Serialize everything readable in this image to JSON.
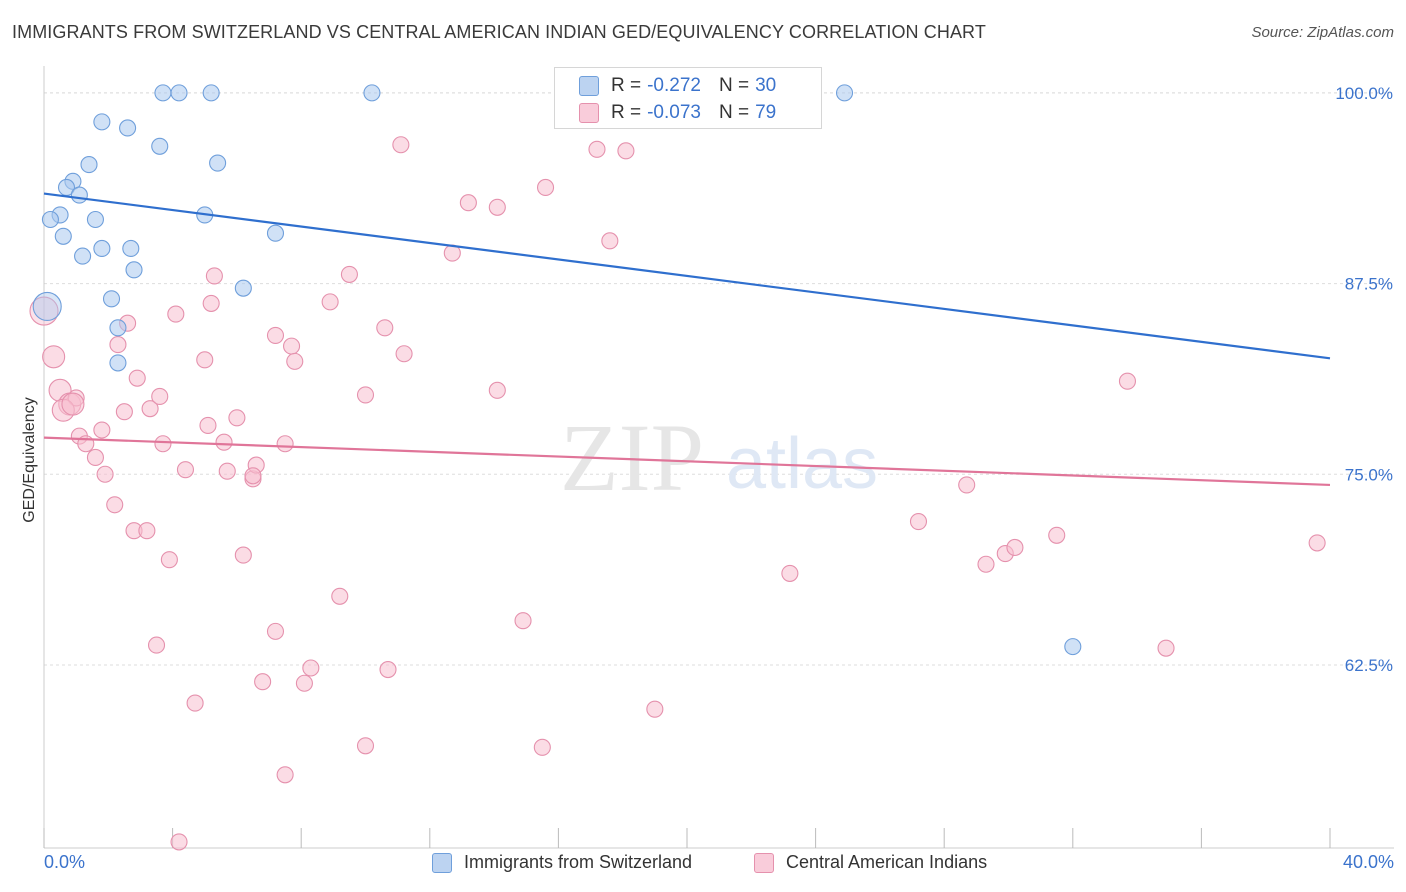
{
  "title": "IMMIGRANTS FROM SWITZERLAND VS CENTRAL AMERICAN INDIAN GED/EQUIVALENCY CORRELATION CHART",
  "source": "Source: ZipAtlas.com",
  "watermark": {
    "zip": "ZIP",
    "atlas": "atlas"
  },
  "legend_top": [
    {
      "r_label": "R =",
      "r_value": "-0.272",
      "n_label": "N =",
      "n_value": "30"
    },
    {
      "r_label": "R =",
      "r_value": "-0.073",
      "n_label": "N =",
      "n_value": "79"
    }
  ],
  "x_axis": {
    "min_label": "0.0%",
    "max_label": "40.0%"
  },
  "colors": {
    "blue_fill": "#aac8ee",
    "blue_stroke": "#6f9fdb",
    "blue_line": "#2f6fce",
    "pink_fill": "#f7bfd0",
    "pink_stroke": "#e591ad",
    "pink_line": "#e07599",
    "tick_text": "#3b73cc",
    "grid": "#dddddd"
  },
  "chart_data": {
    "type": "scatter",
    "title": "IMMIGRANTS FROM SWITZERLAND VS CENTRAL AMERICAN INDIAN GED/EQUIVALENCY CORRELATION CHART",
    "xlabel": "",
    "ylabel": "GED/Equivalency",
    "xlim": [
      0,
      40
    ],
    "ylim": [
      50.5,
      101.5
    ],
    "y_ticks": [
      62.5,
      75.0,
      87.5,
      100.0
    ],
    "y_tick_labels": [
      "62.5%",
      "75.0%",
      "87.5%",
      "100.0%"
    ],
    "grid": true,
    "legend_position": "bottom",
    "series": [
      {
        "name": "Immigrants from Switzerland",
        "color": "#aac8ee",
        "r": -0.272,
        "n": 30,
        "trend": {
          "x": [
            0,
            40
          ],
          "y": [
            93.4,
            82.6
          ]
        },
        "points": [
          [
            3.7,
            100
          ],
          [
            4.2,
            100
          ],
          [
            5.2,
            100
          ],
          [
            10.2,
            100
          ],
          [
            24.9,
            100
          ],
          [
            1.8,
            98.1
          ],
          [
            2.6,
            97.7
          ],
          [
            3.6,
            96.5
          ],
          [
            1.4,
            95.3
          ],
          [
            5.4,
            95.4
          ],
          [
            0.9,
            94.2
          ],
          [
            0.7,
            93.8
          ],
          [
            1.1,
            93.3
          ],
          [
            0.5,
            92.0
          ],
          [
            0.2,
            91.7
          ],
          [
            1.6,
            91.7
          ],
          [
            5.0,
            92.0
          ],
          [
            0.6,
            90.6
          ],
          [
            7.2,
            90.8
          ],
          [
            1.8,
            89.8
          ],
          [
            2.7,
            89.8
          ],
          [
            1.2,
            89.3
          ],
          [
            2.8,
            88.4
          ],
          [
            6.2,
            87.2
          ],
          [
            2.1,
            86.5
          ],
          [
            0.1,
            86.0
          ],
          [
            2.3,
            84.6
          ],
          [
            2.3,
            82.3
          ],
          [
            32.0,
            63.7
          ],
          [
            17.5,
            100
          ]
        ]
      },
      {
        "name": "Central American Indians",
        "color": "#f7bfd0",
        "r": -0.073,
        "n": 79,
        "trend": {
          "x": [
            0,
            40
          ],
          "y": [
            77.4,
            74.3
          ]
        },
        "points": [
          [
            0.0,
            85.7
          ],
          [
            0.3,
            82.7
          ],
          [
            0.5,
            80.5
          ],
          [
            0.8,
            79.6
          ],
          [
            1.0,
            80.0
          ],
          [
            0.6,
            79.2
          ],
          [
            1.1,
            77.5
          ],
          [
            1.3,
            77.0
          ],
          [
            1.8,
            77.9
          ],
          [
            1.6,
            76.1
          ],
          [
            1.9,
            75.0
          ],
          [
            2.2,
            73.0
          ],
          [
            2.3,
            83.5
          ],
          [
            2.5,
            79.1
          ],
          [
            2.6,
            84.9
          ],
          [
            2.9,
            81.3
          ],
          [
            3.3,
            79.3
          ],
          [
            3.6,
            80.1
          ],
          [
            3.7,
            77.0
          ],
          [
            4.1,
            85.5
          ],
          [
            2.8,
            71.3
          ],
          [
            3.2,
            71.3
          ],
          [
            3.9,
            69.4
          ],
          [
            4.4,
            75.3
          ],
          [
            3.5,
            63.8
          ],
          [
            4.7,
            60.0
          ],
          [
            5.0,
            82.5
          ],
          [
            5.1,
            78.2
          ],
          [
            5.2,
            86.2
          ],
          [
            5.3,
            88.0
          ],
          [
            5.6,
            77.1
          ],
          [
            5.7,
            75.2
          ],
          [
            6.0,
            78.7
          ],
          [
            6.2,
            69.7
          ],
          [
            6.5,
            74.7
          ],
          [
            6.6,
            75.6
          ],
          [
            6.5,
            74.9
          ],
          [
            7.2,
            84.1
          ],
          [
            7.7,
            83.4
          ],
          [
            7.8,
            82.4
          ],
          [
            7.5,
            77.0
          ],
          [
            7.2,
            64.7
          ],
          [
            6.8,
            61.4
          ],
          [
            7.5,
            55.3
          ],
          [
            8.1,
            61.3
          ],
          [
            8.3,
            62.3
          ],
          [
            8.9,
            86.3
          ],
          [
            9.2,
            67.0
          ],
          [
            9.5,
            88.1
          ],
          [
            10.0,
            80.2
          ],
          [
            10.6,
            84.6
          ],
          [
            11.2,
            82.9
          ],
          [
            10.7,
            62.2
          ],
          [
            10.0,
            57.2
          ],
          [
            11.1,
            96.6
          ],
          [
            12.7,
            89.5
          ],
          [
            13.2,
            92.8
          ],
          [
            14.1,
            92.5
          ],
          [
            14.1,
            80.5
          ],
          [
            14.9,
            65.4
          ],
          [
            15.5,
            57.1
          ],
          [
            15.6,
            93.8
          ],
          [
            17.2,
            96.3
          ],
          [
            17.6,
            90.3
          ],
          [
            18.1,
            96.2
          ],
          [
            19.0,
            59.6
          ],
          [
            21.2,
            100
          ],
          [
            23.2,
            68.5
          ],
          [
            27.2,
            71.9
          ],
          [
            28.7,
            74.3
          ],
          [
            29.3,
            69.1
          ],
          [
            29.9,
            69.8
          ],
          [
            30.2,
            70.2
          ],
          [
            31.5,
            71.0
          ],
          [
            33.7,
            81.1
          ],
          [
            34.9,
            63.6
          ],
          [
            39.6,
            70.5
          ],
          [
            4.2,
            50.9
          ],
          [
            0.9,
            79.6
          ]
        ]
      }
    ]
  }
}
